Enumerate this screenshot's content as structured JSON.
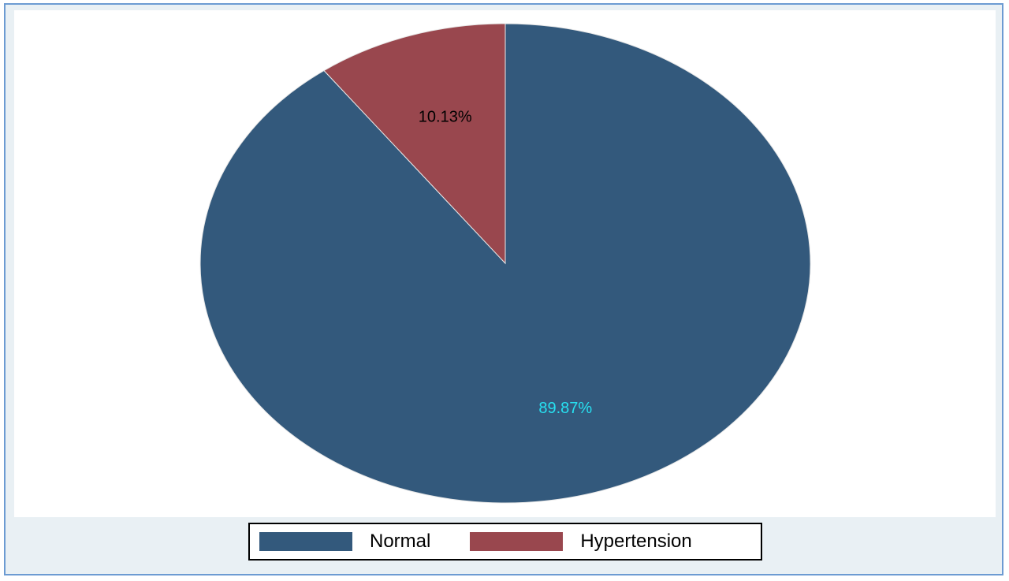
{
  "chart_data": {
    "type": "pie",
    "slices": [
      {
        "label": "Normal",
        "value": 89.87,
        "display": "89.87%",
        "color": "#33597c",
        "label_color": "#27e0f0"
      },
      {
        "label": "Hypertension",
        "value": 10.13,
        "display": "10.13%",
        "color": "#99474e",
        "label_color": "#000000"
      }
    ],
    "start_angle_deg_from_12_oclock": 0,
    "direction": "clockwise",
    "legend": {
      "placement": "bottom",
      "items": [
        "Normal",
        "Hypertension"
      ]
    }
  }
}
